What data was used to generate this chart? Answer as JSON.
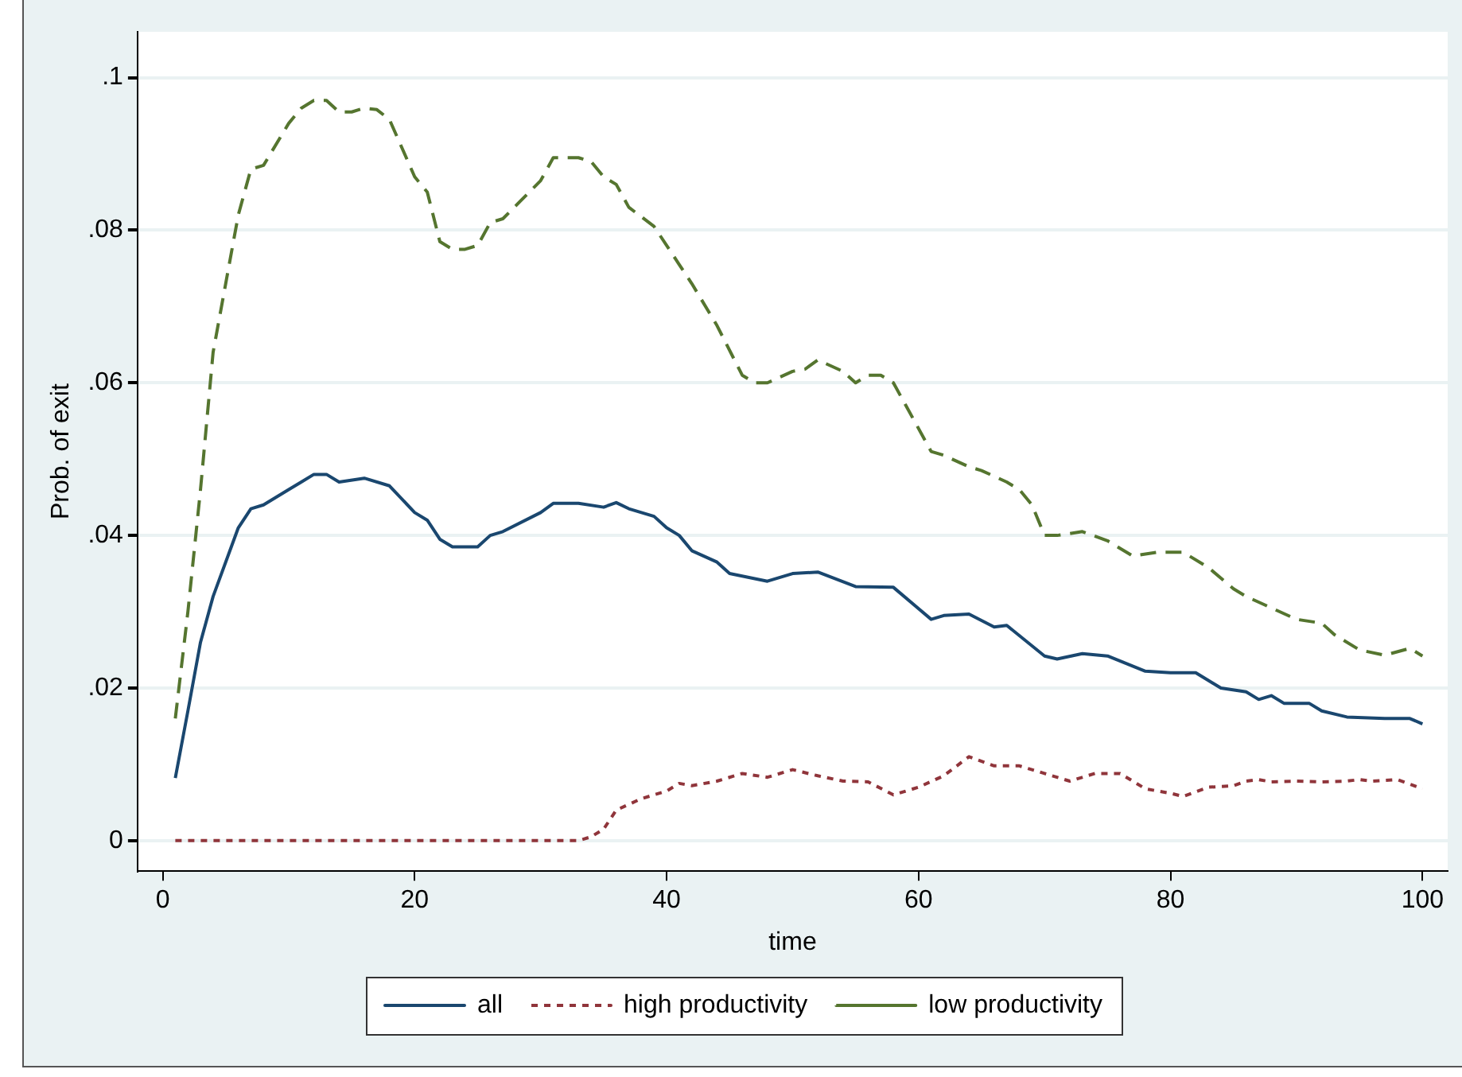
{
  "chart_data": {
    "type": "line",
    "xlabel": "time",
    "ylabel": "Prob. of exit",
    "xlim": [
      -2,
      102
    ],
    "ylim": [
      -0.004,
      0.106
    ],
    "xticks": [
      0,
      20,
      40,
      60,
      80,
      100
    ],
    "yticks": [
      {
        "value": 0,
        "label": "0"
      },
      {
        "value": 0.02,
        "label": ".02"
      },
      {
        "value": 0.04,
        "label": ".04"
      },
      {
        "value": 0.06,
        "label": ".06"
      },
      {
        "value": 0.08,
        "label": ".08"
      },
      {
        "value": 0.1,
        "label": ".1"
      }
    ],
    "grid": "y",
    "legend": "bottom",
    "marker": "none",
    "series": [
      {
        "name": "all",
        "color": "#1a476f",
        "line_style": "solid",
        "x": [
          1,
          2,
          3,
          4,
          6,
          7,
          8,
          10,
          11,
          12,
          13,
          14,
          16,
          18,
          20,
          21,
          22,
          23,
          25,
          26,
          27,
          30,
          31,
          33,
          35,
          36,
          37,
          39,
          40,
          41,
          42,
          44,
          45,
          48,
          50,
          52,
          55,
          58,
          61,
          62,
          64,
          66,
          67,
          70,
          71,
          73,
          75,
          78,
          80,
          82,
          84,
          86,
          87,
          88,
          89,
          91,
          92,
          94,
          97,
          99,
          100
        ],
        "values": [
          0.0082,
          0.017,
          0.026,
          0.032,
          0.041,
          0.0435,
          0.044,
          0.046,
          0.047,
          0.048,
          0.048,
          0.047,
          0.0475,
          0.0465,
          0.043,
          0.042,
          0.0395,
          0.0385,
          0.0385,
          0.04,
          0.0405,
          0.043,
          0.0442,
          0.0442,
          0.0437,
          0.0443,
          0.0435,
          0.0425,
          0.041,
          0.04,
          0.038,
          0.0365,
          0.035,
          0.034,
          0.035,
          0.0352,
          0.0333,
          0.0332,
          0.029,
          0.0295,
          0.0297,
          0.028,
          0.0282,
          0.0242,
          0.0238,
          0.0245,
          0.0242,
          0.0222,
          0.022,
          0.022,
          0.02,
          0.0195,
          0.0185,
          0.019,
          0.018,
          0.018,
          0.017,
          0.0162,
          0.016,
          0.016,
          0.0153
        ]
      },
      {
        "name": "high productivity",
        "color": "#90353b",
        "line_style": "dotted",
        "x": [
          1,
          33,
          34,
          35,
          36,
          38,
          40,
          41,
          42,
          44,
          46,
          48,
          50,
          52,
          54,
          56,
          58,
          60,
          62,
          64,
          66,
          68,
          70,
          72,
          74,
          76,
          78,
          80,
          81,
          83,
          85,
          86,
          87,
          88,
          90,
          92,
          94,
          95,
          96,
          98,
          100
        ],
        "values": [
          0,
          0,
          0.0005,
          0.0015,
          0.004,
          0.0055,
          0.0065,
          0.0075,
          0.0072,
          0.0078,
          0.0088,
          0.0083,
          0.0093,
          0.0085,
          0.0078,
          0.0077,
          0.006,
          0.007,
          0.0085,
          0.011,
          0.0098,
          0.0098,
          0.0088,
          0.0078,
          0.0088,
          0.0088,
          0.0068,
          0.0062,
          0.0058,
          0.007,
          0.0072,
          0.0078,
          0.008,
          0.0077,
          0.0078,
          0.0077,
          0.0078,
          0.008,
          0.0078,
          0.008,
          0.0068
        ]
      },
      {
        "name": "low productivity",
        "color": "#55752f",
        "line_style": "dashed",
        "x": [
          1,
          2,
          3,
          4,
          6,
          7,
          8,
          10,
          11,
          12,
          13,
          14,
          15,
          16,
          17,
          18,
          20,
          21,
          22,
          23,
          24,
          25,
          26,
          27,
          30,
          31,
          33,
          34,
          35,
          36,
          37,
          39,
          41,
          42,
          44,
          46,
          47,
          48,
          50,
          51,
          52,
          54,
          55,
          56,
          57,
          58,
          59,
          61,
          62,
          64,
          65,
          67,
          68,
          69,
          70,
          71,
          73,
          75,
          77,
          79,
          81,
          83,
          85,
          86,
          88,
          90,
          92,
          93,
          95,
          97,
          99,
          100
        ],
        "values": [
          0.016,
          0.03,
          0.046,
          0.064,
          0.082,
          0.088,
          0.0885,
          0.094,
          0.096,
          0.097,
          0.097,
          0.0955,
          0.0955,
          0.096,
          0.0958,
          0.0945,
          0.087,
          0.085,
          0.0785,
          0.0775,
          0.0775,
          0.078,
          0.081,
          0.0815,
          0.0865,
          0.0895,
          0.0895,
          0.089,
          0.087,
          0.086,
          0.083,
          0.0805,
          0.0755,
          0.073,
          0.0675,
          0.061,
          0.06,
          0.06,
          0.0615,
          0.0618,
          0.063,
          0.0615,
          0.06,
          0.061,
          0.061,
          0.06,
          0.057,
          0.051,
          0.0505,
          0.049,
          0.0485,
          0.047,
          0.046,
          0.044,
          0.04,
          0.04,
          0.0405,
          0.0393,
          0.0373,
          0.0378,
          0.0378,
          0.0358,
          0.033,
          0.032,
          0.0305,
          0.029,
          0.0285,
          0.027,
          0.025,
          0.0243,
          0.0252,
          0.0242
        ]
      }
    ]
  }
}
